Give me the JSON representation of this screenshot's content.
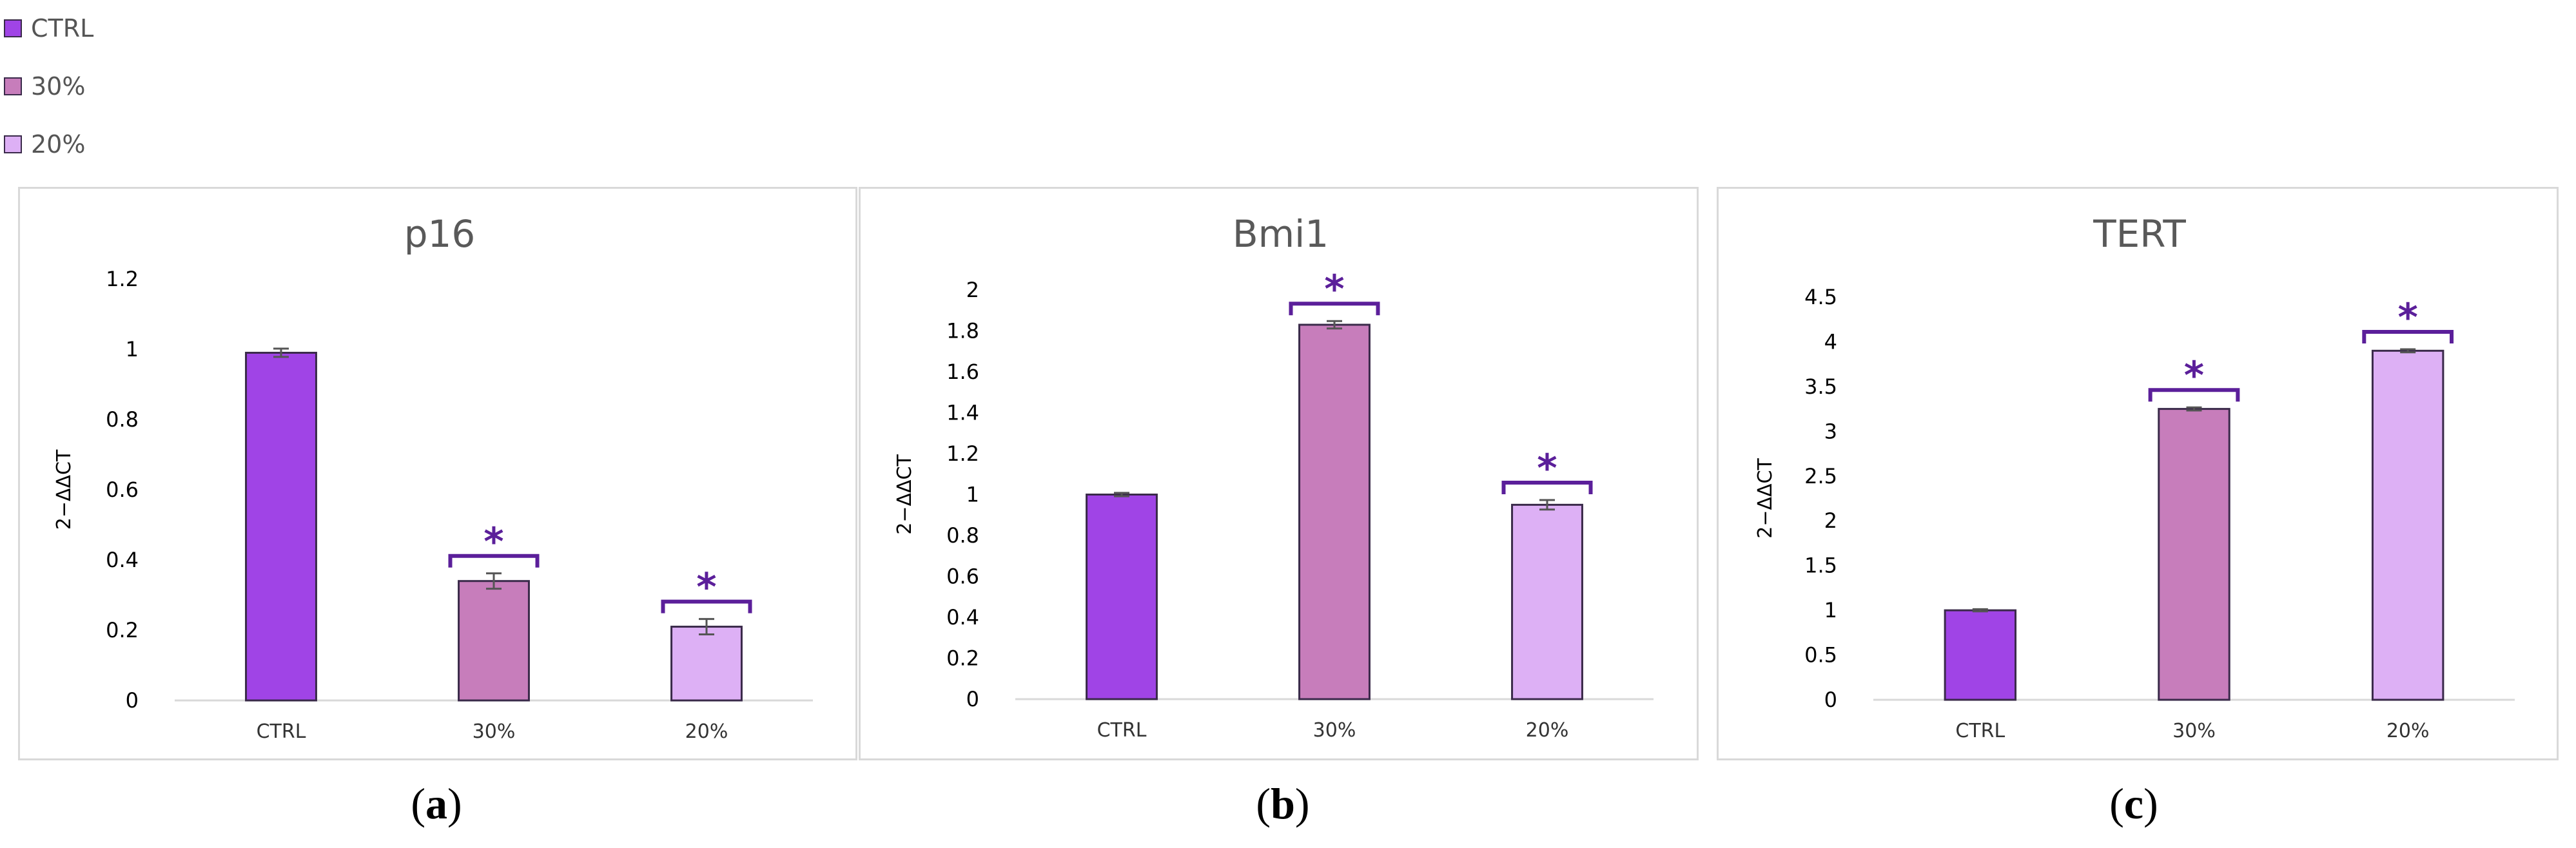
{
  "legend": {
    "items": [
      {
        "label": "CTRL",
        "color": "#a044e6"
      },
      {
        "label": "30%",
        "color": "#c77dbb"
      },
      {
        "label": "20%",
        "color": "#ddb0f5"
      }
    ]
  },
  "chart_data": [
    {
      "type": "bar",
      "title": "p16",
      "caption": "a",
      "ylabel": "2−ΔΔCT",
      "categories": [
        "CTRL",
        "30%",
        "20%"
      ],
      "values": [
        0.99,
        0.34,
        0.21
      ],
      "errors": [
        0.01,
        0.02,
        0.02
      ],
      "significant": [
        false,
        true,
        true
      ],
      "significance_mark": "*",
      "ylim": [
        0,
        1.2
      ],
      "yticks": [
        0,
        0.2,
        0.4,
        0.6,
        0.8,
        1,
        1.2
      ],
      "ytick_labels": [
        "0",
        "0.2",
        "0.4",
        "0.6",
        "0.8",
        "1",
        "1.2"
      ],
      "colors": [
        "#a044e6",
        "#c77dbb",
        "#ddb0f5"
      ],
      "grid": false
    },
    {
      "type": "bar",
      "title": "Bmi1",
      "caption": "b",
      "ylabel": "2−ΔΔCT",
      "categories": [
        "CTRL",
        "30%",
        "20%"
      ],
      "values": [
        1.0,
        1.83,
        0.95
      ],
      "errors": [
        0.005,
        0.015,
        0.02
      ],
      "significant": [
        false,
        true,
        true
      ],
      "significance_mark": "*",
      "ylim": [
        0,
        2
      ],
      "yticks": [
        0,
        0.2,
        0.4,
        0.6,
        0.8,
        1,
        1.2,
        1.4,
        1.6,
        1.8,
        2
      ],
      "ytick_labels": [
        "0",
        "0.2",
        "0.4",
        "0.6",
        "0.8",
        "1",
        "1.2",
        "1.4",
        "1.6",
        "1.8",
        "2"
      ],
      "colors": [
        "#a044e6",
        "#c77dbb",
        "#ddb0f5"
      ],
      "grid": false
    },
    {
      "type": "bar",
      "title": "TERT",
      "caption": "c",
      "ylabel": "2−ΔΔCT",
      "categories": [
        "CTRL",
        "30%",
        "20%"
      ],
      "values": [
        1.0,
        3.25,
        3.9
      ],
      "errors": [
        0.005,
        0.01,
        0.01
      ],
      "significant": [
        false,
        true,
        true
      ],
      "significance_mark": "*",
      "ylim": [
        0,
        4.5
      ],
      "yticks": [
        0,
        0.5,
        1,
        1.5,
        2,
        2.5,
        3,
        3.5,
        4,
        4.5
      ],
      "ytick_labels": [
        "0",
        "0.5",
        "1",
        "1.5",
        "2",
        "2.5",
        "3",
        "3.5",
        "4",
        "4.5"
      ],
      "colors": [
        "#a044e6",
        "#c77dbb",
        "#ddb0f5"
      ],
      "grid": false
    }
  ]
}
